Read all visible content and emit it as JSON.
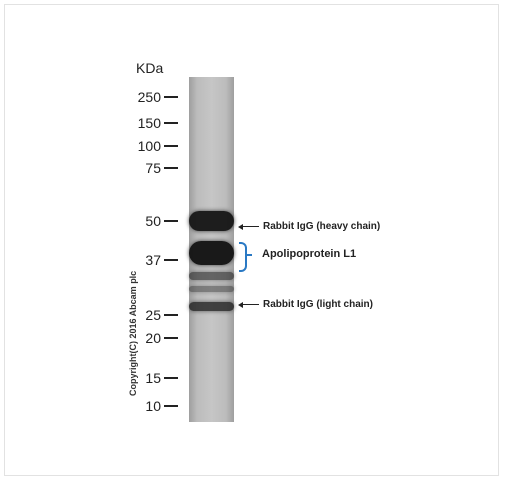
{
  "axis": {
    "unit": "KDa"
  },
  "markers": [
    {
      "label": "250",
      "kda": 250
    },
    {
      "label": "150",
      "kda": 150
    },
    {
      "label": "100",
      "kda": 100
    },
    {
      "label": "75",
      "kda": 75
    },
    {
      "label": "50",
      "kda": 50
    },
    {
      "label": "37",
      "kda": 37
    },
    {
      "label": "25",
      "kda": 25
    },
    {
      "label": "20",
      "kda": 20
    },
    {
      "label": "15",
      "kda": 15
    },
    {
      "label": "10",
      "kda": 10
    }
  ],
  "bands": [
    {
      "kda": 50,
      "intensity": 0.95
    },
    {
      "kda": 39,
      "intensity": 0.97
    },
    {
      "kda": 33,
      "intensity": 0.55
    },
    {
      "kda": 30,
      "intensity": 0.4
    },
    {
      "kda": 26.5,
      "intensity": 0.75
    }
  ],
  "annotations": {
    "heavy_chain": "Rabbit IgG (heavy chain)",
    "target": "Apolipoprotein L1",
    "light_chain": "Rabbit IgG (light chain)"
  },
  "copyright": "Copyright(C) 2016 Abcam plc",
  "colors": {
    "bracket": "#2a79c4",
    "lane": "#c6c6c6",
    "band": "#1e1e1e"
  }
}
